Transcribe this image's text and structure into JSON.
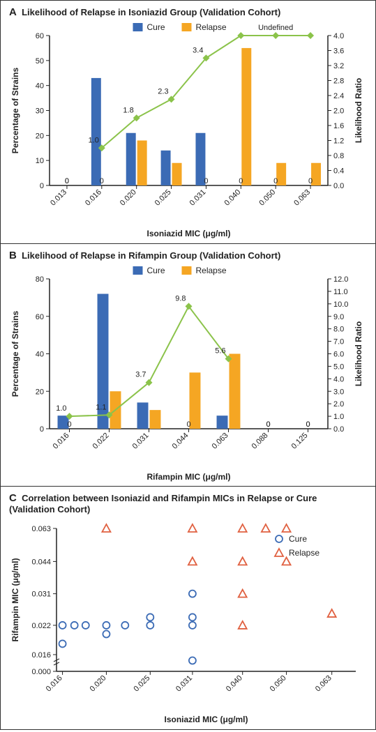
{
  "panelA": {
    "letter": "A",
    "title": "Likelihood of Relapse in Isoniazid Group (Validation Cohort)",
    "legend": {
      "cure": "Cure",
      "relapse": "Relapse"
    },
    "x_categories": [
      "0.013",
      "0.016",
      "0.020",
      "0.025",
      "0.031",
      "0.040",
      "0.050",
      "0.063"
    ],
    "cure_values": [
      0,
      43,
      21,
      14,
      21,
      0,
      0,
      0
    ],
    "relapse_values": [
      0,
      0,
      18,
      9,
      0,
      55,
      9,
      9
    ],
    "likelihood_values": [
      null,
      1.0,
      1.8,
      2.3,
      3.4,
      4.0,
      4.0,
      4.0
    ],
    "likelihood_labels": [
      "",
      "1.0",
      "1.8",
      "2.3",
      "3.4",
      "",
      "",
      ""
    ],
    "undefined_label": "Undefined",
    "zero_labels": [
      [
        0,
        "0"
      ],
      [
        0,
        "0"
      ],
      [
        1,
        "0"
      ],
      [
        4,
        "0"
      ],
      [
        5,
        "0"
      ],
      [
        6,
        "0"
      ],
      [
        7,
        "0"
      ]
    ],
    "ylabel_left": "Percentage of Strains",
    "ylabel_right": "Likelihood Ratio",
    "xlabel": "Isoniazid MIC (μg/ml)",
    "yleft_max": 60,
    "yleft_step": 10,
    "yright_max": 4.0,
    "yright_step": 0.4,
    "colors": {
      "cure": "#3b6bb5",
      "relapse": "#f5a623",
      "line": "#8bc34a",
      "marker": "#8bc34a"
    }
  },
  "panelB": {
    "letter": "B",
    "title": "Likelihood of Relapse in Rifampin  Group (Validation Cohort)",
    "legend": {
      "cure": "Cure",
      "relapse": "Relapse"
    },
    "x_categories": [
      "0.016",
      "0.022",
      "0.031",
      "0.044",
      "0.063",
      "0.088",
      "0.125"
    ],
    "cure_values": [
      7,
      72,
      14,
      0,
      7,
      0,
      0
    ],
    "relapse_values": [
      0,
      20,
      10,
      30,
      40,
      0,
      0
    ],
    "likelihood_values": [
      1.0,
      1.1,
      3.7,
      9.8,
      5.6,
      null,
      null
    ],
    "likelihood_labels": [
      "1.0",
      "1.1",
      "3.7",
      "9.8",
      "5.6",
      "",
      ""
    ],
    "zero_labels": [
      [
        0,
        "0"
      ],
      [
        3,
        "0"
      ],
      [
        5,
        "0"
      ],
      [
        5,
        "0"
      ],
      [
        6,
        "0"
      ],
      [
        6,
        "0"
      ]
    ],
    "ylabel_left": "Percentage of Strains",
    "ylabel_right": "Likelihood Ratio",
    "xlabel": "Rifampin MIC (μg/ml)",
    "yleft_max": 80,
    "yleft_step": 20,
    "yright_max": 12.0,
    "yright_step": 1.0,
    "colors": {
      "cure": "#3b6bb5",
      "relapse": "#f5a623",
      "line": "#8bc34a",
      "marker": "#8bc34a"
    }
  },
  "panelC": {
    "letter": "C",
    "title": "Correlation between Isoniazid and Rifampin MICs in Relapse or Cure (Validation Cohort)",
    "legend": {
      "cure": "Cure",
      "relapse": "Relapse"
    },
    "xlabel": "Isoniazid MIC (μg/ml)",
    "ylabel": "Rifampin MIC (μg/ml)",
    "x_ticks": [
      "0.016",
      "0.020",
      "0.025",
      "0.031",
      "0.040",
      "0.050",
      "0.063"
    ],
    "y_ticks": [
      "0.000",
      "0.016",
      "0.022",
      "0.031",
      "0.044",
      "0.063"
    ],
    "cure_color": "#3b6bb5",
    "relapse_color": "#e06040",
    "cure_points": [
      [
        0.016,
        0.022
      ],
      [
        0.016,
        0.018
      ],
      [
        0.017,
        0.022
      ],
      [
        0.018,
        0.022
      ],
      [
        0.02,
        0.022
      ],
      [
        0.02,
        0.02
      ],
      [
        0.022,
        0.022
      ],
      [
        0.025,
        0.022
      ],
      [
        0.025,
        0.024
      ],
      [
        0.031,
        0.024
      ],
      [
        0.031,
        0.022
      ],
      [
        0.031,
        0.031
      ],
      [
        0.031,
        0.015
      ]
    ],
    "relapse_points": [
      [
        0.02,
        0.063
      ],
      [
        0.031,
        0.063
      ],
      [
        0.031,
        0.044
      ],
      [
        0.04,
        0.063
      ],
      [
        0.04,
        0.044
      ],
      [
        0.04,
        0.031
      ],
      [
        0.04,
        0.022
      ],
      [
        0.045,
        0.063
      ],
      [
        0.05,
        0.063
      ],
      [
        0.05,
        0.044
      ],
      [
        0.063,
        0.025
      ]
    ]
  }
}
